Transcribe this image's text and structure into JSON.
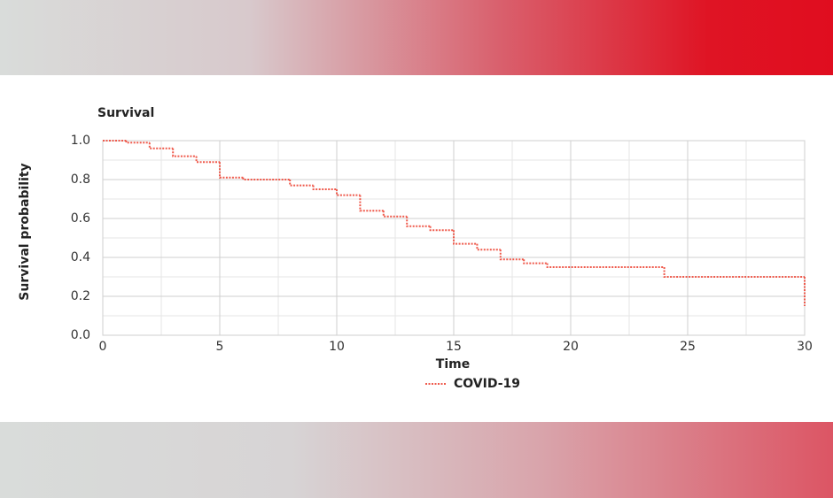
{
  "chart_data": {
    "type": "step",
    "title": "Survival",
    "xlabel": "Time",
    "ylabel": "Survival probability",
    "x": [
      0,
      1,
      2,
      3,
      4,
      5,
      6,
      8,
      9,
      10,
      11,
      12,
      13,
      14,
      15,
      16,
      17,
      18,
      19,
      24,
      30
    ],
    "series": [
      {
        "name": "COVID-19",
        "color": "#ef5a4c",
        "values": [
          1.0,
          0.99,
          0.96,
          0.92,
          0.89,
          0.81,
          0.8,
          0.77,
          0.75,
          0.72,
          0.64,
          0.61,
          0.56,
          0.54,
          0.47,
          0.44,
          0.39,
          0.37,
          0.35,
          0.3,
          0.15
        ]
      }
    ],
    "xlim": [
      0,
      30
    ],
    "xticks": [
      0,
      5,
      10,
      15,
      20,
      25,
      30
    ],
    "ylim": [
      0,
      1
    ],
    "yticks": [
      {
        "value": 0,
        "label": "0.0"
      },
      0.2,
      0.4,
      0.6,
      0.8,
      {
        "value": 1,
        "label": "1.0"
      }
    ],
    "x_minor_ticks": [
      2.5,
      7.5,
      12.5,
      17.5,
      22.5,
      27.5
    ],
    "y_minor_ticks": [
      0.1,
      0.3,
      0.5,
      0.7,
      0.9
    ],
    "grid": true
  }
}
